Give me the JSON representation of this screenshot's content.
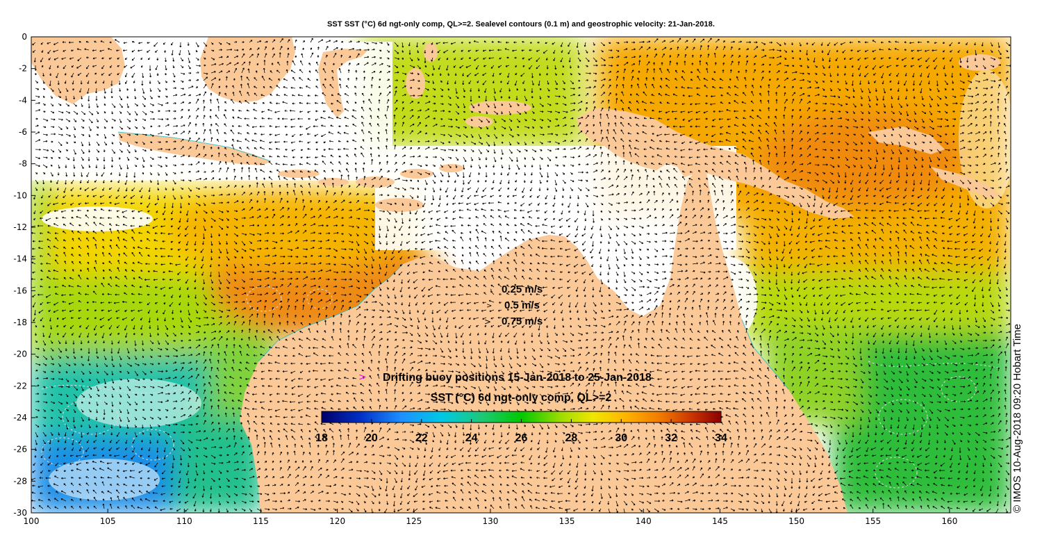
{
  "title": "SST SST (°C) 6d ngt-only comp, QL>=2. Sealevel contours (0.1 m) and geostrophic velocity: 21-Jan-2018.",
  "credit": "© IMOS 10-Aug-2018 09:20 Hobart Time",
  "axes": {
    "x_ticks": [
      "100",
      "105",
      "110",
      "115",
      "120",
      "125",
      "130",
      "135",
      "140",
      "145",
      "150",
      "155",
      "160"
    ],
    "y_ticks": [
      "0",
      "-2",
      "-4",
      "-6",
      "-8",
      "-10",
      "-12",
      "-14",
      "-16",
      "-18",
      "-20",
      "-22",
      "-24",
      "-26",
      "-28",
      "-30"
    ],
    "xlim": [
      100,
      164
    ],
    "ylim": [
      -30,
      0
    ]
  },
  "velocity_legend": {
    "items": [
      {
        "label": "0.25 m/s"
      },
      {
        "label": "0.5 m/s"
      },
      {
        "label": "0.75 m/s"
      }
    ]
  },
  "buoy_legend": {
    "marker": ">",
    "label": "Drifting buoy positions 15-Jan-2018 to 25-Jan-2018",
    "marker_color": "#ff00ff"
  },
  "colorbar": {
    "title": "SST (°C) 6d ngt-only comp, QL>=2",
    "ticks": [
      "18",
      "20",
      "22",
      "24",
      "26",
      "28",
      "30",
      "32",
      "34"
    ],
    "range": [
      18,
      34
    ],
    "colormap": [
      "#00006a",
      "#0032c8",
      "#1e90ff",
      "#00c8e6",
      "#1ec878",
      "#00c800",
      "#a0dc00",
      "#f0e600",
      "#ffb400",
      "#f07800",
      "#c83200",
      "#8c0000"
    ]
  },
  "colors": {
    "land": "#fbc897",
    "no_data": "#ffffff",
    "arrow": "#000000",
    "contour": "#dcdcdc"
  }
}
